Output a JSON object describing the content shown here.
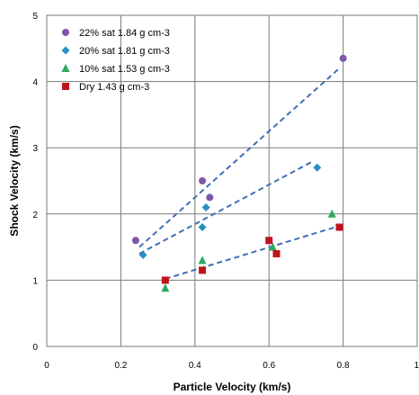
{
  "chart_data": {
    "type": "scatter",
    "xlabel": "Particle Velocity (km/s)",
    "ylabel": "Shock Velocity (km/s)",
    "xlim": [
      0,
      1
    ],
    "ylim": [
      0,
      5
    ],
    "xticks": [
      0,
      0.2,
      0.4,
      0.6,
      0.8,
      1
    ],
    "yticks": [
      0,
      1,
      2,
      3,
      4,
      5
    ],
    "xtick_labels": [
      "0",
      "0.2",
      "0.4",
      "0.6",
      "0.8",
      "1"
    ],
    "ytick_labels": [
      "0",
      "1",
      "2",
      "3",
      "4",
      "5"
    ],
    "grid": true,
    "legend_position": "top-left",
    "series": [
      {
        "name": "22%  sat 1.84 g cm-3",
        "marker": "circle",
        "color": "#7e57a8",
        "x": [
          0.24,
          0.42,
          0.44,
          0.8
        ],
        "y": [
          1.6,
          2.5,
          2.25,
          4.35
        ],
        "fit": {
          "x": [
            0.25,
            0.79
          ],
          "y": [
            1.5,
            4.2
          ]
        }
      },
      {
        "name": "20%  sat 1.81 g cm-3",
        "marker": "diamond",
        "color": "#2a8fc2",
        "x": [
          0.26,
          0.42,
          0.43,
          0.73
        ],
        "y": [
          1.38,
          1.8,
          2.1,
          2.7
        ],
        "fit": {
          "x": [
            0.25,
            0.72
          ],
          "y": [
            1.4,
            2.8
          ]
        }
      },
      {
        "name": "10%  sat 1.53 g cm-3",
        "marker": "triangle",
        "color": "#2ca860",
        "x": [
          0.32,
          0.42,
          0.61,
          0.77
        ],
        "y": [
          0.88,
          1.3,
          1.5,
          2.0
        ]
      },
      {
        "name": "Dry        1.43 g cm-3",
        "marker": "square",
        "color": "#c0141c",
        "x": [
          0.32,
          0.42,
          0.6,
          0.62,
          0.79
        ],
        "y": [
          1.0,
          1.15,
          1.6,
          1.4,
          1.8
        ],
        "fit": {
          "x": [
            0.32,
            0.79
          ],
          "y": [
            1.02,
            1.82
          ]
        }
      }
    ],
    "fit_line_color": "#3f6fb5"
  }
}
